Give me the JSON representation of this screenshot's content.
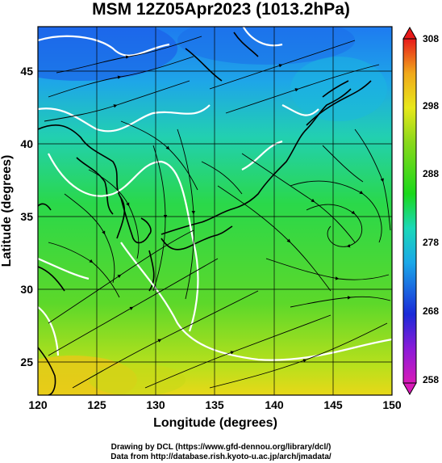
{
  "title": "MSM 12Z05Apr2023 (1013.2hPa)",
  "map": {
    "model": "MSM",
    "valid_time": "12Z05Apr2023",
    "pressure_level": "1013.2hPa",
    "field": "temperature with streamlines",
    "lon_range": [
      120,
      150
    ],
    "lat_range": [
      22.7,
      48
    ],
    "x_ticks": [
      "120",
      "125",
      "130",
      "135",
      "140",
      "145",
      "150"
    ],
    "y_ticks": [
      "25",
      "30",
      "35",
      "40",
      "45"
    ],
    "xlabel": "Longitude (degrees)",
    "ylabel": "Latitude  (degrees)",
    "grid": "on"
  },
  "colorbar": {
    "ticks": [
      "308",
      "298",
      "288",
      "278",
      "268",
      "258"
    ],
    "min": 258,
    "max": 308
  },
  "credits": {
    "line1": "Drawing by DCL (https://www.gfd-dennou.org/library/dcl/)",
    "line2": "Data from http://database.rish.kyoto-u.ac.jp/arch/jmadata/"
  }
}
